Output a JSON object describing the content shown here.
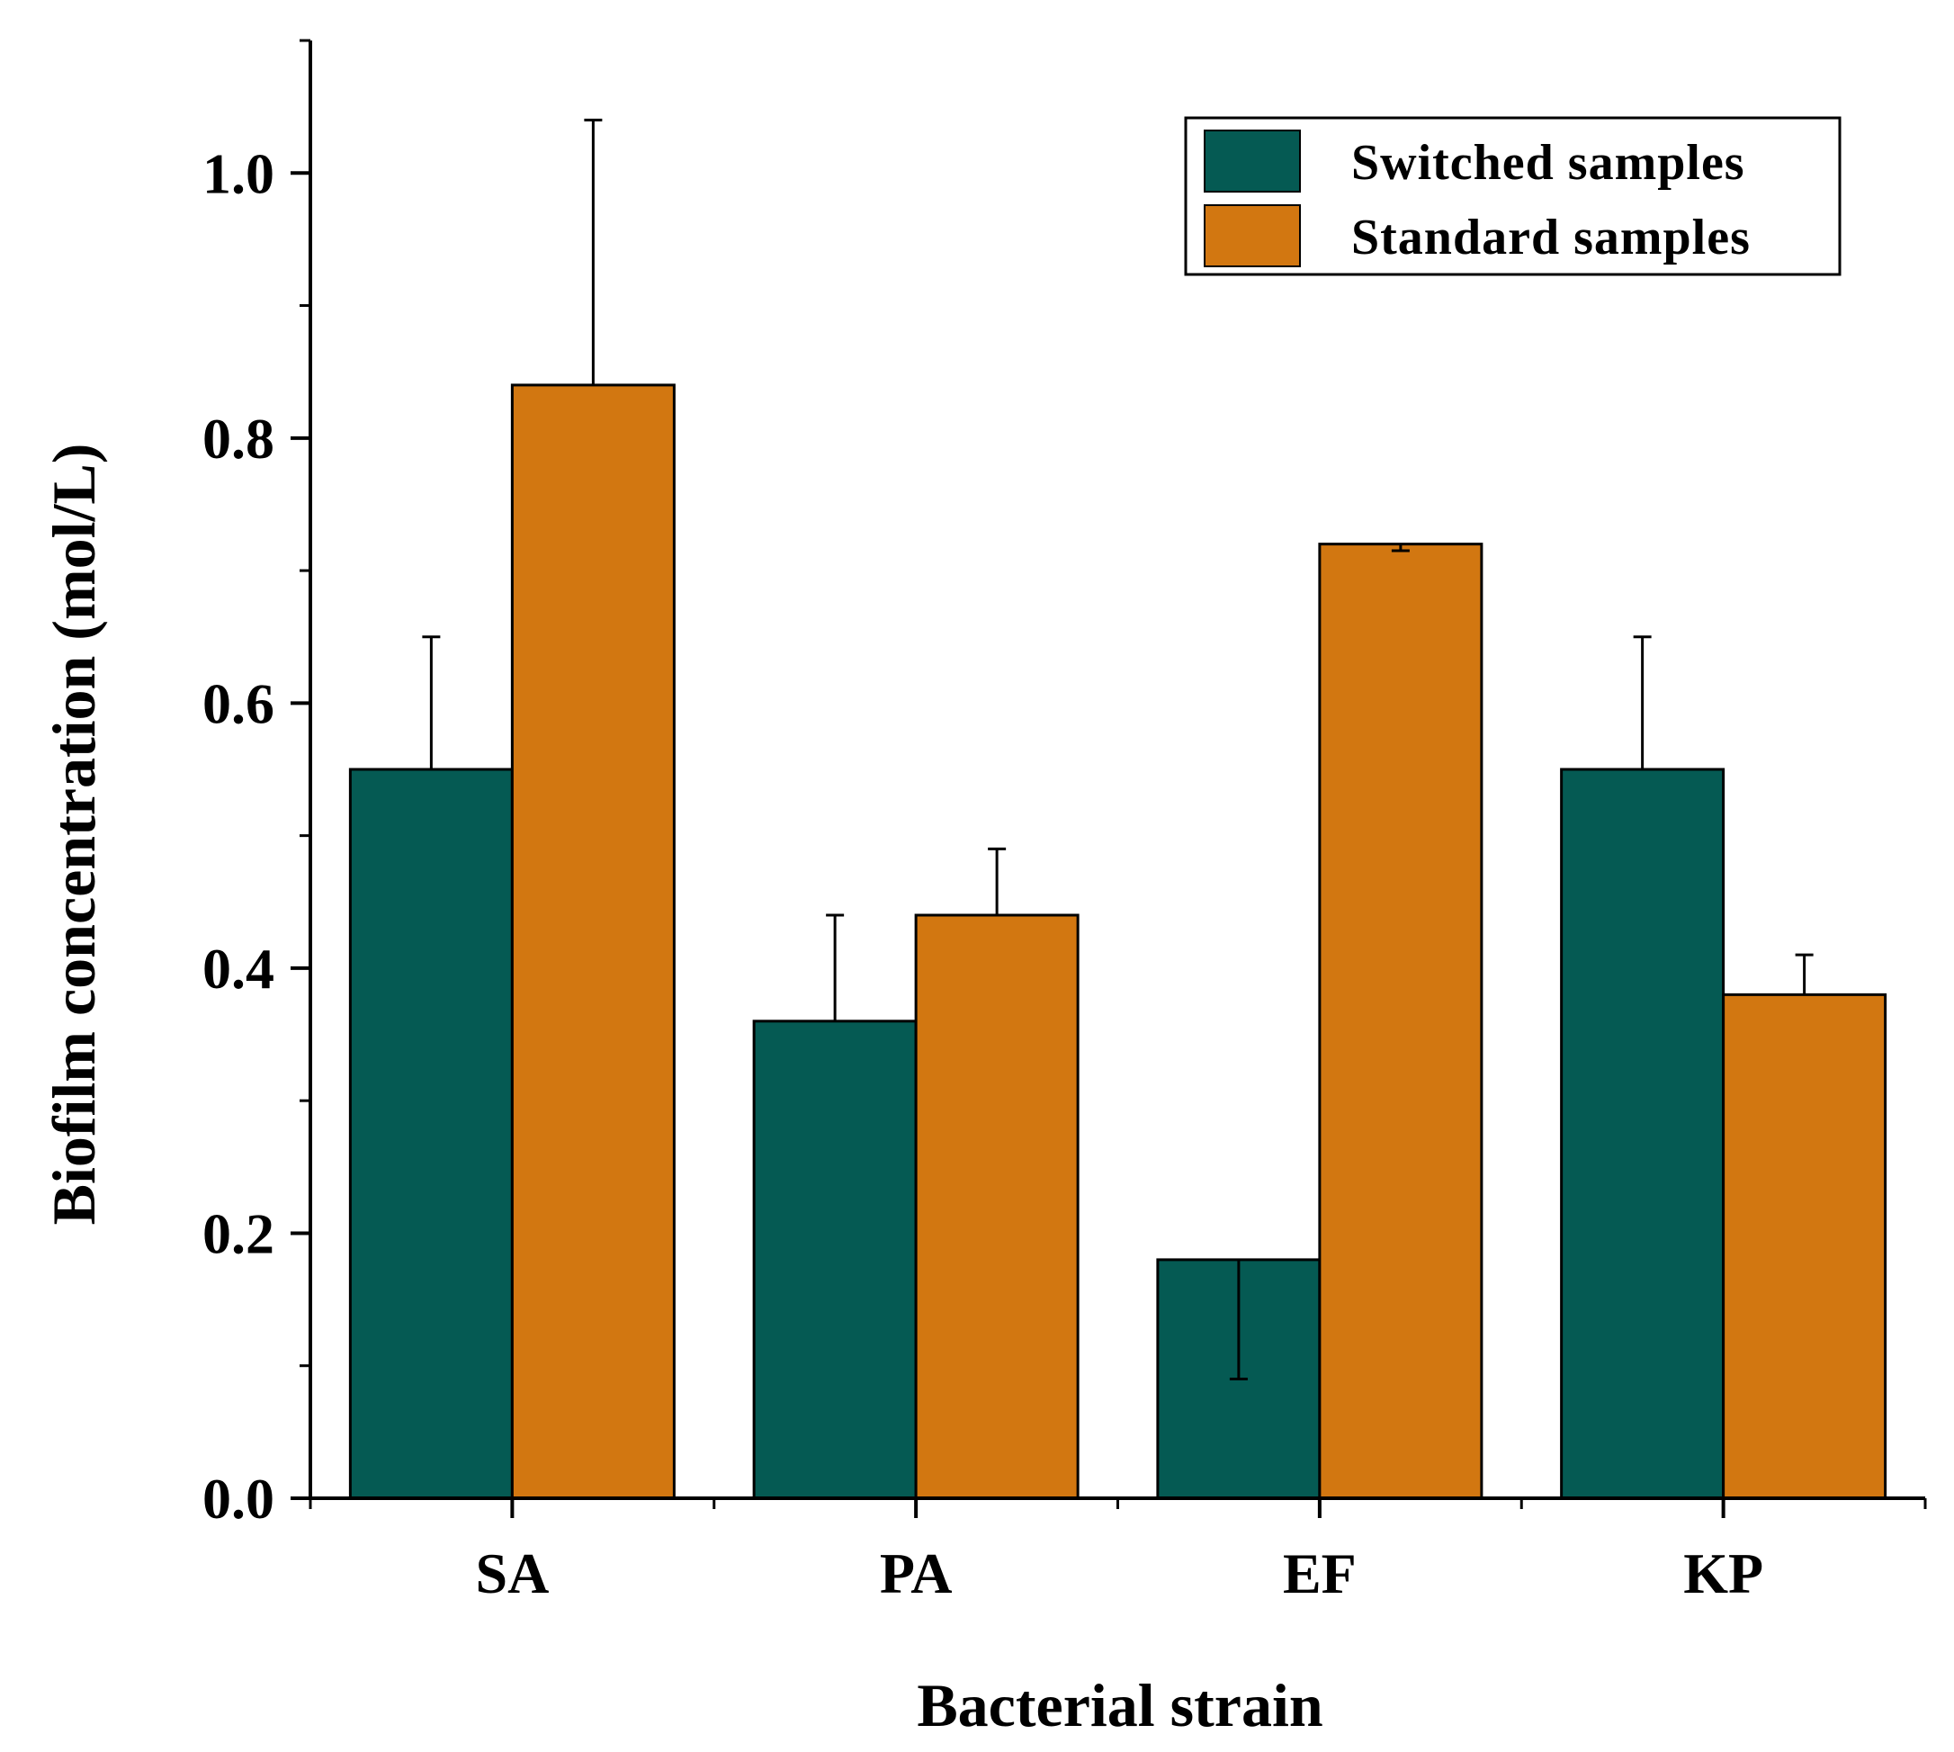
{
  "chart_data": {
    "type": "bar",
    "title": "",
    "xlabel": "Bacterial strain",
    "ylabel": "Biofilm concentration (mol/L)",
    "ylim": [
      0,
      1.1
    ],
    "y_ticks": [
      "0.0",
      "0.2",
      "0.4",
      "0.6",
      "0.8",
      "1.0"
    ],
    "y_tick_values": [
      0,
      0.2,
      0.4,
      0.6,
      0.8,
      1.0
    ],
    "categories": [
      "SA",
      "PA",
      "EF",
      "KP"
    ],
    "series": [
      {
        "name": "Switched samples",
        "color": "#055A53",
        "values": [
          0.55,
          0.36,
          0.18,
          0.55
        ],
        "error_upper": [
          0.65,
          0.44,
          0.18,
          0.65
        ],
        "error_lower": [
          0.55,
          0.36,
          0.09,
          0.55
        ]
      },
      {
        "name": "Standard samples",
        "color": "#D27711",
        "values": [
          0.84,
          0.44,
          0.72,
          0.38
        ],
        "error_upper": [
          1.04,
          0.49,
          0.72,
          0.41
        ],
        "error_lower": [
          0.84,
          0.44,
          0.715,
          0.38
        ]
      }
    ],
    "legend": {
      "position": "top-right",
      "entries": [
        "Switched samples",
        "Standard samples"
      ]
    },
    "grid": false
  }
}
